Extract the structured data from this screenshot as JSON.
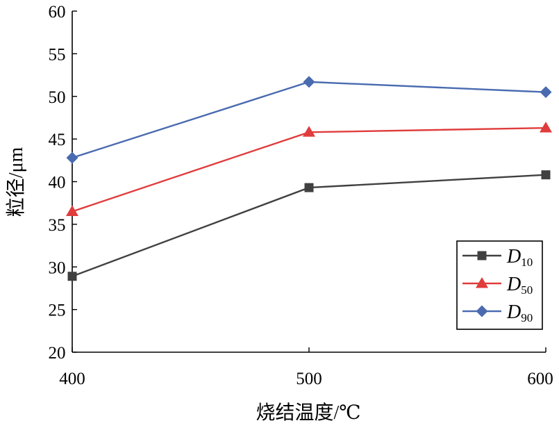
{
  "chart_data": {
    "type": "line",
    "title": "",
    "xlabel": "烧结温度/℃",
    "ylabel": "粒径/μm",
    "x": [
      400,
      500,
      600
    ],
    "xticks": [
      "400",
      "500",
      "600"
    ],
    "xlim": [
      400,
      600
    ],
    "ylim": [
      20,
      60
    ],
    "yticks": [
      20,
      25,
      30,
      35,
      40,
      45,
      50,
      55,
      60
    ],
    "grid": false,
    "legend_position": "bottom-right",
    "series": [
      {
        "name": "D10",
        "name_main": "D",
        "name_sub": "10",
        "values": [
          28.9,
          39.3,
          40.8
        ],
        "color": "#404040",
        "marker": "square"
      },
      {
        "name": "D50",
        "name_main": "D",
        "name_sub": "50",
        "values": [
          36.5,
          45.8,
          46.3
        ],
        "color": "#e03c3c",
        "marker": "triangle"
      },
      {
        "name": "D90",
        "name_main": "D",
        "name_sub": "90",
        "values": [
          42.8,
          51.7,
          50.5
        ],
        "color": "#4a6bb0",
        "marker": "diamond"
      }
    ]
  }
}
